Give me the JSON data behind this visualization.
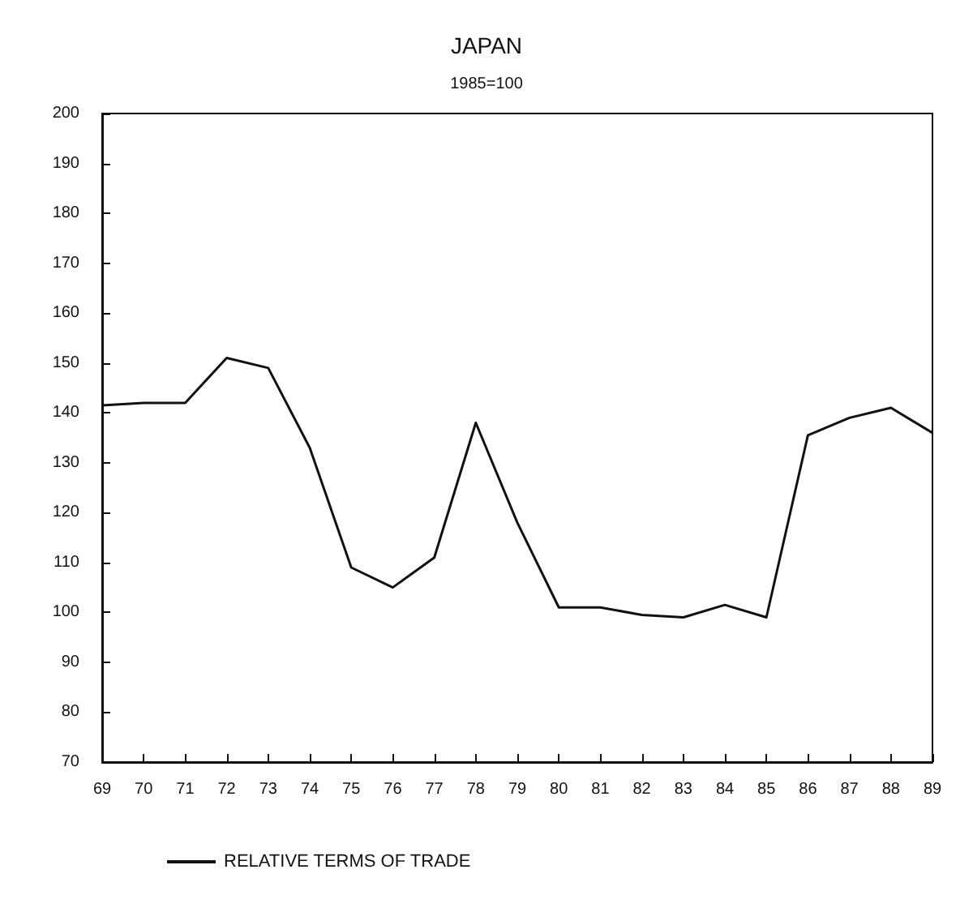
{
  "chart_data": {
    "type": "line",
    "title": "JAPAN",
    "subtitle": "1985=100",
    "categories": [
      "69",
      "70",
      "71",
      "72",
      "73",
      "74",
      "75",
      "76",
      "77",
      "78",
      "79",
      "80",
      "81",
      "82",
      "83",
      "84",
      "85",
      "86",
      "87",
      "88",
      "89"
    ],
    "series": [
      {
        "name": "RELATIVE TERMS OF TRADE",
        "color": "#111111",
        "values": [
          141.5,
          142,
          142,
          151,
          149,
          133,
          109,
          105,
          111,
          138,
          118,
          101,
          101,
          99.5,
          99,
          101.5,
          99,
          135.5,
          139,
          141,
          136
        ]
      }
    ],
    "ylim": [
      70,
      200
    ],
    "yticks": [
      70,
      80,
      90,
      100,
      110,
      120,
      130,
      140,
      150,
      160,
      170,
      180,
      190,
      200
    ],
    "grid": false,
    "legend": "bottom left",
    "marker": "none",
    "line_style": "solid"
  }
}
